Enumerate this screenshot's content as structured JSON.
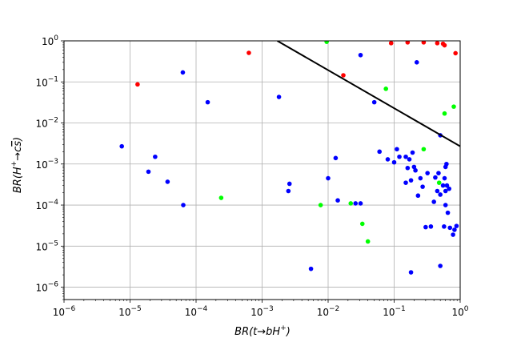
{
  "chart_data": {
    "type": "scatter",
    "title": "",
    "xlabel_main": "BR(t→bH",
    "xlabel_sup": "+",
    "xlabel_close": ")",
    "ylabel_main": "BR(H",
    "ylabel_sup": "+",
    "ylabel_mid": "→c",
    "ylabel_bar": "s",
    "ylabel_close": ")",
    "x_scale": "log",
    "y_scale": "log",
    "xlim": [
      1e-06,
      1
    ],
    "ylim": [
      5e-07,
      1
    ],
    "x_ticks": [
      1e-06,
      1e-05,
      0.0001,
      0.001,
      0.01,
      0.1,
      1
    ],
    "y_ticks": [
      1e-06,
      1e-05,
      0.0001,
      0.001,
      0.01,
      0.1,
      1
    ],
    "x_tick_labels": [
      {
        "base": "10",
        "exp": "−6"
      },
      {
        "base": "10",
        "exp": "−5"
      },
      {
        "base": "10",
        "exp": "−4"
      },
      {
        "base": "10",
        "exp": "−3"
      },
      {
        "base": "10",
        "exp": "−2"
      },
      {
        "base": "10",
        "exp": "−1"
      },
      {
        "base": "10",
        "exp": "0"
      }
    ],
    "y_tick_labels": [
      {
        "base": "10",
        "exp": "−6"
      },
      {
        "base": "10",
        "exp": "−5"
      },
      {
        "base": "10",
        "exp": "−4"
      },
      {
        "base": "10",
        "exp": "−3"
      },
      {
        "base": "10",
        "exp": "−2"
      },
      {
        "base": "10",
        "exp": "−1"
      },
      {
        "base": "10",
        "exp": "0"
      }
    ],
    "grid": true,
    "line": {
      "color": "#000000",
      "points": [
        [
          0.0017,
          1.0
        ],
        [
          1.0,
          0.0027
        ]
      ]
    },
    "series": [
      {
        "color": "#ff0000",
        "points": [
          [
            1.3e-05,
            0.087
          ],
          [
            0.00063,
            0.51
          ],
          [
            0.017,
            0.145
          ],
          [
            0.09,
            0.88
          ],
          [
            0.16,
            0.92
          ],
          [
            0.28,
            0.92
          ],
          [
            0.45,
            0.88
          ],
          [
            0.55,
            0.85
          ],
          [
            0.58,
            0.78
          ],
          [
            0.85,
            0.5
          ]
        ]
      },
      {
        "color": "#00ff00",
        "points": [
          [
            0.00024,
            0.00015
          ],
          [
            0.0077,
            0.0001
          ],
          [
            0.0095,
            0.95
          ],
          [
            0.022,
            0.00011
          ],
          [
            0.033,
            3.5e-05
          ],
          [
            0.04,
            1.3e-05
          ],
          [
            0.075,
            0.068
          ],
          [
            0.28,
            0.0023
          ],
          [
            0.48,
            0.00035
          ],
          [
            0.58,
            0.017
          ],
          [
            0.8,
            0.025
          ]
        ]
      },
      {
        "color": "#0000ff",
        "points": [
          [
            7.5e-06,
            0.0027
          ],
          [
            1.9e-05,
            0.00065
          ],
          [
            2.4e-05,
            0.0015
          ],
          [
            3.7e-05,
            0.00037
          ],
          [
            6.3e-05,
            0.17
          ],
          [
            6.4e-05,
            0.0001
          ],
          [
            0.00015,
            0.032
          ],
          [
            0.0018,
            0.043
          ],
          [
            0.0025,
            0.00022
          ],
          [
            0.0026,
            0.00033
          ],
          [
            0.0055,
            2.8e-06
          ],
          [
            0.01,
            0.00045
          ],
          [
            0.013,
            0.0014
          ],
          [
            0.014,
            0.00013
          ],
          [
            0.026,
            0.00011
          ],
          [
            0.031,
            0.00011
          ],
          [
            0.031,
            0.45
          ],
          [
            0.05,
            0.032
          ],
          [
            0.06,
            0.002
          ],
          [
            0.08,
            0.0013
          ],
          [
            0.1,
            0.0011
          ],
          [
            0.11,
            0.0023
          ],
          [
            0.12,
            0.0015
          ],
          [
            0.15,
            0.0015
          ],
          [
            0.15,
            0.00035
          ],
          [
            0.16,
            0.0008
          ],
          [
            0.17,
            0.0013
          ],
          [
            0.18,
            2.3e-06
          ],
          [
            0.18,
            0.0004
          ],
          [
            0.19,
            0.0019
          ],
          [
            0.2,
            0.00085
          ],
          [
            0.21,
            0.0007
          ],
          [
            0.22,
            0.3
          ],
          [
            0.23,
            0.00017
          ],
          [
            0.25,
            0.00045
          ],
          [
            0.27,
            0.00028
          ],
          [
            0.3,
            2.9e-05
          ],
          [
            0.32,
            0.0006
          ],
          [
            0.36,
            3e-05
          ],
          [
            0.4,
            0.00012
          ],
          [
            0.42,
            0.00047
          ],
          [
            0.45,
            0.00022
          ],
          [
            0.47,
            0.0006
          ],
          [
            0.5,
            0.005
          ],
          [
            0.5,
            0.00018
          ],
          [
            0.5,
            3.3e-06
          ],
          [
            0.55,
            0.0003
          ],
          [
            0.57,
            3e-05
          ],
          [
            0.58,
            0.00045
          ],
          [
            0.6,
            0.0001
          ],
          [
            0.6,
            0.00022
          ],
          [
            0.6,
            0.00085
          ],
          [
            0.62,
            0.001
          ],
          [
            0.63,
            0.0003
          ],
          [
            0.65,
            6.5e-05
          ],
          [
            0.68,
            0.00025
          ],
          [
            0.7,
            2.8e-05
          ],
          [
            0.78,
            1.9e-05
          ],
          [
            0.82,
            2.5e-05
          ],
          [
            0.88,
            3.1e-05
          ]
        ]
      }
    ]
  }
}
